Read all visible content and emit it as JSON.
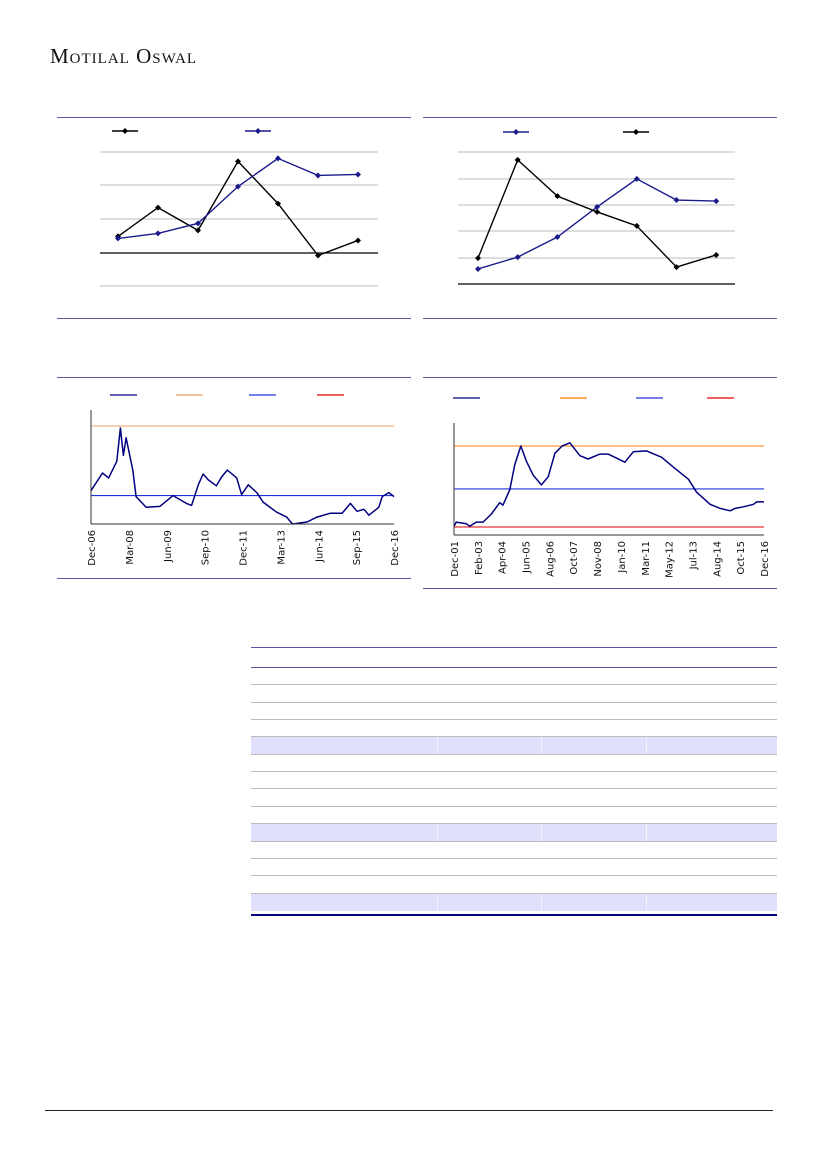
{
  "header": {
    "logo_text": "Motilal Oswal"
  },
  "colors": {
    "black": "#000000",
    "navy": "#1a1a8c",
    "dark_navy": "#000080",
    "orange": "#ff7f00",
    "blue": "#2233dd",
    "red": "#e00000",
    "rule": "#5a57a8",
    "table_shade": "#e0e0fc"
  },
  "chart_data": [
    {
      "type": "line",
      "title": "",
      "series": [
        {
          "name": "",
          "color": "#000000",
          "marker": "diamond",
          "values": [
            0.48,
            1.34,
            0.66,
            2.72,
            1.46,
            -0.09,
            0.36
          ]
        },
        {
          "name": "",
          "color": "#1a1a8c",
          "marker": "diamond",
          "values": [
            0.42,
            0.57,
            0.87,
            1.97,
            2.81,
            2.3,
            2.33
          ]
        }
      ],
      "categories_count": 7,
      "ylim": [
        -1,
        3
      ],
      "gridlines": [
        -1,
        0,
        1,
        2,
        3
      ],
      "grid": true,
      "legend": "top"
    },
    {
      "type": "line",
      "title": "",
      "series": [
        {
          "name": "",
          "color": "#1a1a8c",
          "marker": "diamond",
          "values": [
            0.57,
            1.02,
            1.78,
            2.92,
            3.98,
            3.18,
            3.14
          ]
        },
        {
          "name": "",
          "color": "#000000",
          "marker": "diamond",
          "values": [
            0.98,
            4.7,
            3.33,
            2.73,
            2.2,
            0.64,
            1.1
          ]
        }
      ],
      "categories_count": 7,
      "ylim": [
        0,
        5
      ],
      "gridlines": [
        0,
        1,
        2,
        3,
        4,
        5
      ],
      "grid": true,
      "legend": "top"
    },
    {
      "type": "line",
      "title": "",
      "x_ticks": [
        "Dec-06",
        "Mar-08",
        "Jun-09",
        "Sep-10",
        "Dec-11",
        "Mar-13",
        "Jun-14",
        "Sep-15",
        "Dec-16"
      ],
      "xlim": [
        2006.92,
        2016.92
      ],
      "ylim": [
        0,
        100
      ],
      "series": [
        {
          "name": "",
          "color": "#000080",
          "x": [
            2006.92,
            2007.3,
            2007.5,
            2007.77,
            2007.89,
            2007.99,
            2008.08,
            2008.3,
            2008.41,
            2008.74,
            2009.19,
            2009.63,
            2010.07,
            2010.24,
            2010.46,
            2010.62,
            2010.79,
            2011.06,
            2011.23,
            2011.42,
            2011.73,
            2011.89,
            2012.11,
            2012.39,
            2012.61,
            2013.05,
            2013.38,
            2013.57,
            2014.05,
            2014.38,
            2014.82,
            2015.21,
            2015.48,
            2015.7,
            2015.93,
            2016.09,
            2016.42,
            2016.53,
            2016.75,
            2016.92
          ],
          "values": [
            34,
            52,
            47,
            64,
            98,
            70,
            88,
            55,
            28,
            17,
            18,
            29,
            21,
            19,
            40,
            51,
            45,
            39,
            48,
            55,
            47,
            30,
            40,
            32,
            22,
            12,
            7,
            0,
            2,
            7,
            11,
            11,
            21,
            13,
            15,
            9,
            17,
            28,
            32,
            28
          ]
        },
        {
          "name": "",
          "color": "#f0a060",
          "constant": 100
        },
        {
          "name": "",
          "color": "#2233dd",
          "constant": 29
        },
        {
          "name": "",
          "color": "#e00000",
          "constant": 0
        }
      ],
      "legend": "top"
    },
    {
      "type": "line",
      "title": "",
      "x_ticks": [
        "Dec-01",
        "Feb-03",
        "Apr-04",
        "Jun-05",
        "Aug-06",
        "Oct-07",
        "Nov-08",
        "Jan-10",
        "Mar-11",
        "May-12",
        "Jul-13",
        "Aug-14",
        "Oct-15",
        "Dec-16"
      ],
      "xlim": [
        2001.92,
        2016.92
      ],
      "ylim": [
        -10,
        110
      ],
      "series": [
        {
          "name": "",
          "color": "#000080",
          "x": [
            2001.92,
            2002.03,
            2002.52,
            2002.68,
            2003.0,
            2003.33,
            2003.73,
            2004.13,
            2004.29,
            2004.62,
            2004.86,
            2005.15,
            2005.43,
            2005.75,
            2006.15,
            2006.48,
            2006.8,
            2007.15,
            2007.53,
            2008.01,
            2008.41,
            2008.98,
            2009.38,
            2010.19,
            2010.6,
            2011.24,
            2011.97,
            2012.53,
            2013.26,
            2013.66,
            2014.31,
            2014.8,
            2015.28,
            2015.52,
            2015.93,
            2016.41,
            2016.57,
            2016.92
          ],
          "values": [
            1,
            6,
            4,
            1,
            6,
            6,
            16,
            30,
            27,
            46,
            77,
            100,
            81,
            64,
            52,
            62,
            91,
            100,
            104,
            88,
            84,
            90,
            90,
            80,
            93,
            94,
            86,
            74,
            59,
            43,
            28,
            23,
            20,
            23,
            25,
            28,
            31,
            31
          ]
        },
        {
          "name": "",
          "color": "#ff7f00",
          "constant": 100
        },
        {
          "name": "",
          "color": "#2233dd",
          "constant": 47
        },
        {
          "name": "",
          "color": "#e00000",
          "constant": 0
        }
      ],
      "legend": "top"
    }
  ]
}
